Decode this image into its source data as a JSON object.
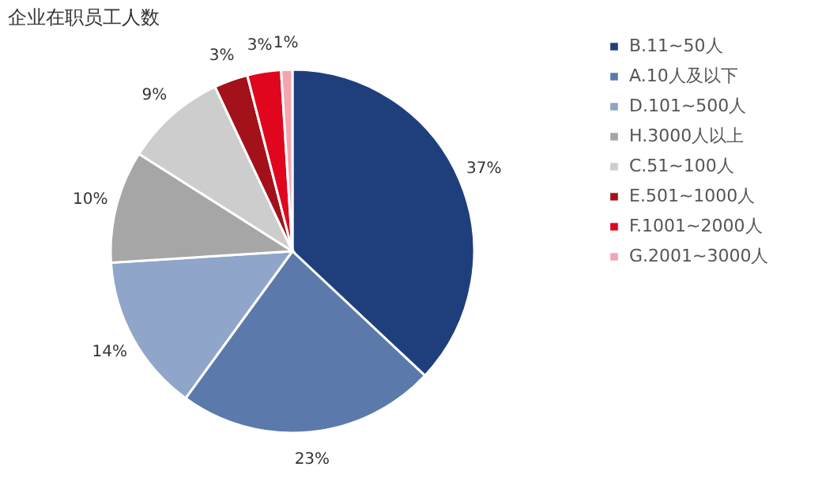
{
  "chart_data": {
    "type": "pie",
    "title": "企业在职员工人数",
    "categories": [
      "B.11~50人",
      "A.10人及以下",
      "D.101~500人",
      "H.3000人以上",
      "C.51~100人",
      "E.501~1000人",
      "F.1001~2000人",
      "G.2001~3000人"
    ],
    "values": [
      37,
      23,
      14,
      10,
      9,
      3,
      3,
      1
    ],
    "colors": [
      "#1f3f7c",
      "#5b7aab",
      "#8fa5c9",
      "#a6a6a6",
      "#cdcdcd",
      "#a3111a",
      "#e0061e",
      "#f3a5b0"
    ],
    "value_labels": [
      "37%",
      "23%",
      "14%",
      "10%",
      "9%",
      "3%",
      "3%",
      "1%"
    ],
    "legend": "right"
  }
}
